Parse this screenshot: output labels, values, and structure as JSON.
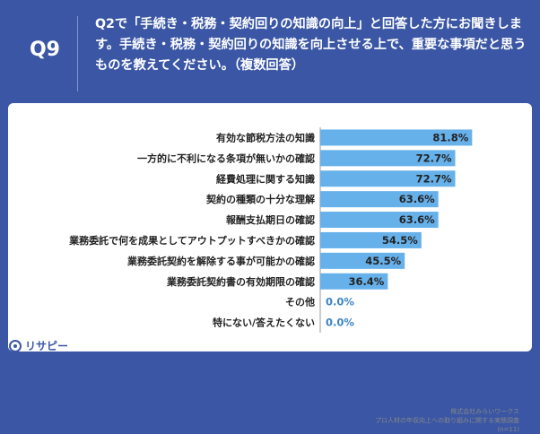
{
  "header": {
    "qnum": "Q9",
    "question": "Q2で「手続き・税務・契約回りの知識の向上」と回答した方にお聞きします。手続き・税務・契約回りの知識を向上させる上で、重要な事項だと思うものを教えてください。（複数回答）"
  },
  "chart_data": {
    "type": "bar",
    "orientation": "horizontal",
    "categories": [
      "有効な節税方法の知識",
      "一方的に不利になる条項が無いかの確認",
      "経費処理に関する知識",
      "契約の種類の十分な理解",
      "報酬支払期日の確認",
      "業務委託で何を成果としてアウトプットすべきかの確認",
      "業務委託契約を解除する事が可能かの確認",
      "業務委託契約書の有効期限の確認",
      "その他",
      "特にない/答えたくない"
    ],
    "values": [
      81.8,
      72.7,
      72.7,
      63.6,
      63.6,
      54.5,
      45.5,
      36.4,
      0.0,
      0.0
    ],
    "value_labels": [
      "81.8%",
      "72.7%",
      "72.7%",
      "63.6%",
      "63.6%",
      "54.5%",
      "45.5%",
      "36.4%",
      "0.0%",
      "0.0%"
    ],
    "xlim": [
      0,
      100
    ],
    "bar_color": "#67b1ea"
  },
  "credit": {
    "company": "株式会社みらいワークス",
    "survey": "プロ人材の年収向上への取り組みに関する実態調査",
    "n": "(n=11)"
  },
  "logo": {
    "text": "リサピー"
  }
}
